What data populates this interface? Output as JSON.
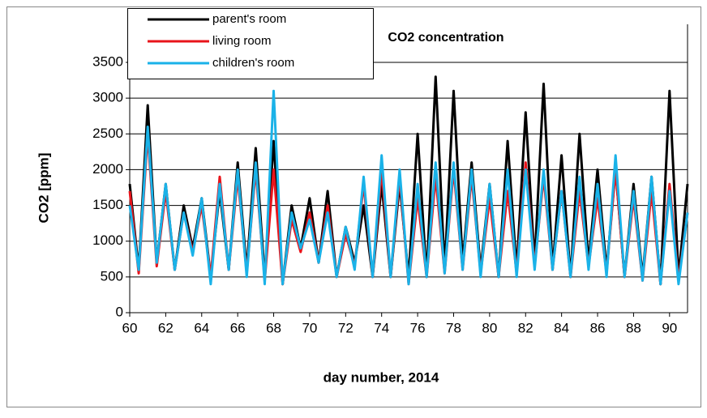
{
  "chart_data": {
    "type": "line",
    "title": "CO2 concentration",
    "xlabel": "day number, 2014",
    "ylabel": "CO2 [ppm]",
    "xlim": [
      60,
      91
    ],
    "xticks": [
      60,
      62,
      64,
      66,
      68,
      70,
      72,
      74,
      76,
      78,
      80,
      82,
      84,
      86,
      88,
      90
    ],
    "ylim": [
      0,
      3500
    ],
    "yticks": [
      0,
      500,
      1000,
      1500,
      2000,
      2500,
      3000,
      3500
    ],
    "grid": true,
    "legend": "top-left",
    "x": [
      60,
      60.5,
      61,
      61.5,
      62,
      62.5,
      63,
      63.5,
      64,
      64.5,
      65,
      65.5,
      66,
      66.5,
      67,
      67.5,
      68,
      68.5,
      69,
      69.5,
      70,
      70.5,
      71,
      71.5,
      72,
      72.5,
      73,
      73.5,
      74,
      74.5,
      75,
      75.5,
      76,
      76.5,
      77,
      77.5,
      78,
      78.5,
      79,
      79.5,
      80,
      80.5,
      81,
      81.5,
      82,
      82.5,
      83,
      83.5,
      84,
      84.5,
      85,
      85.5,
      86,
      86.5,
      87,
      87.5,
      88,
      88.5,
      89,
      89.5,
      90,
      90.5,
      91
    ],
    "series": [
      {
        "name": "parent's room",
        "color": "#000000",
        "values": [
          1800,
          600,
          2900,
          700,
          1800,
          600,
          1500,
          900,
          1600,
          500,
          1700,
          600,
          2100,
          600,
          2300,
          500,
          2400,
          400,
          1500,
          900,
          1600,
          700,
          1700,
          500,
          1200,
          700,
          1500,
          500,
          1800,
          500,
          1800,
          500,
          2500,
          500,
          3300,
          600,
          3100,
          700,
          2100,
          600,
          1800,
          500,
          2400,
          600,
          2800,
          700,
          3200,
          600,
          2200,
          500,
          2500,
          700,
          2000,
          600,
          2000,
          500,
          1800,
          500,
          1900,
          400,
          3100,
          500,
          1800
        ]
      },
      {
        "name": "living room",
        "color": "#e8141b",
        "values": [
          1700,
          550,
          2500,
          650,
          1700,
          600,
          1400,
          850,
          1500,
          500,
          1900,
          600,
          1900,
          550,
          2000,
          450,
          2000,
          400,
          1300,
          850,
          1400,
          700,
          1500,
          500,
          1100,
          650,
          1800,
          500,
          2000,
          500,
          1900,
          400,
          1600,
          500,
          1900,
          550,
          2000,
          600,
          1900,
          550,
          1600,
          500,
          1700,
          550,
          2100,
          650,
          1900,
          600,
          1700,
          500,
          1700,
          650,
          1600,
          550,
          2000,
          500,
          1600,
          450,
          1700,
          400,
          1800,
          450,
          1400
        ]
      },
      {
        "name": "children's room",
        "color": "#1ab2e8",
        "values": [
          1500,
          600,
          2600,
          700,
          1800,
          600,
          1400,
          800,
          1600,
          400,
          1800,
          600,
          2000,
          500,
          2100,
          400,
          3100,
          400,
          1400,
          900,
          1300,
          700,
          1400,
          500,
          1200,
          600,
          1900,
          500,
          2200,
          500,
          2000,
          400,
          1800,
          500,
          2100,
          550,
          2100,
          600,
          2000,
          500,
          1800,
          500,
          2000,
          500,
          2000,
          600,
          2000,
          600,
          1700,
          500,
          1900,
          600,
          1800,
          500,
          2200,
          500,
          1700,
          450,
          1900,
          400,
          1700,
          400,
          1400
        ]
      }
    ]
  }
}
